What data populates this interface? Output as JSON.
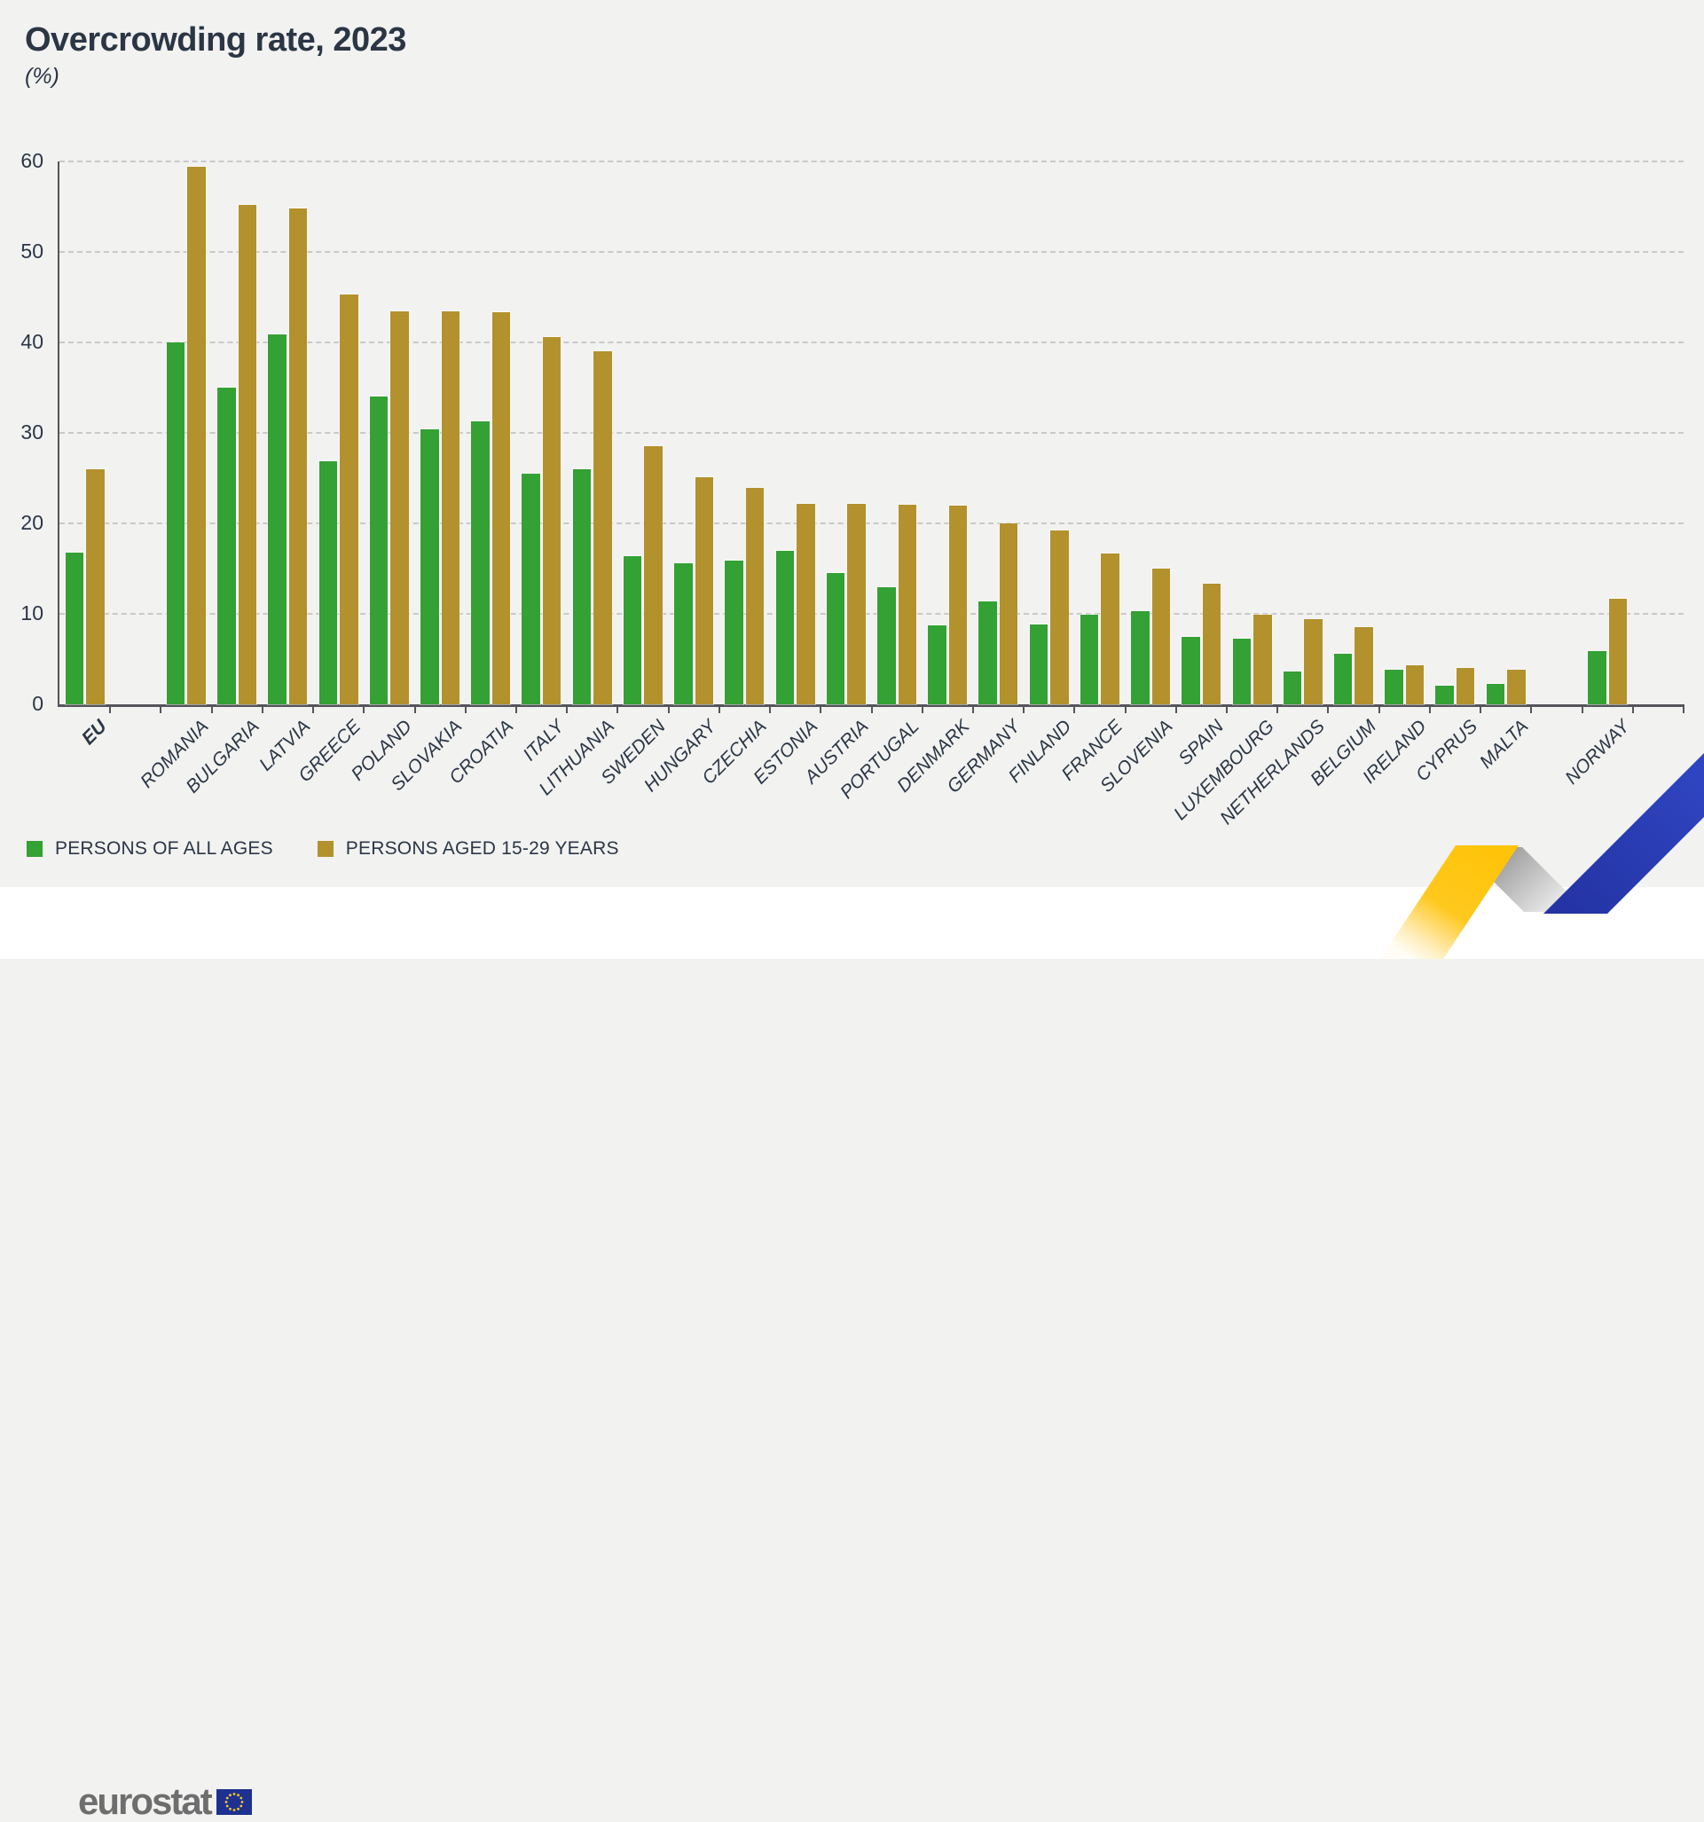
{
  "title": "Overcrowding rate, 2023",
  "subtitle": "(%)",
  "legend": {
    "all_ages_label": "PERSONS OF ALL AGES",
    "aged_15_29_label": "PERSONS AGED 15-29 YEARS"
  },
  "footer": {
    "logo_text": "eurostat"
  },
  "colors": {
    "all_ages": "#33a133",
    "aged_15_29": "#b3912c",
    "text": "#2b3645",
    "axis": "#54555a",
    "gridline": "#c9c9c9",
    "background": "#f2f2f1",
    "footer_background": "#ffffff",
    "ribbon_yellow": "#ffc408",
    "ribbon_blue": "#2b3db2",
    "flag_blue": "#1e3191",
    "flag_stars": "#f7c91e",
    "logo_gray": "#6e6e6e"
  },
  "chart_data": {
    "type": "bar",
    "title": "Overcrowding rate, 2023",
    "ylabel": "(%)",
    "ylim": [
      0,
      60
    ],
    "yticks": [
      0,
      10,
      20,
      30,
      40,
      50,
      60
    ],
    "grid": "horizontal-dashed",
    "legend_position": "bottom-left",
    "categories": [
      "EU",
      "ROMANIA",
      "BULGARIA",
      "LATVIA",
      "GREECE",
      "POLAND",
      "SLOVAKIA",
      "CROATIA",
      "ITALY",
      "LITHUANIA",
      "SWEDEN",
      "HUNGARY",
      "CZECHIA",
      "ESTONIA",
      "AUSTRIA",
      "PORTUGAL",
      "DENMARK",
      "GERMANY",
      "FINLAND",
      "FRANCE",
      "SLOVENIA",
      "SPAIN",
      "LUXEMBOURG",
      "NETHERLANDS",
      "BELGIUM",
      "IRELAND",
      "CYPRUS",
      "MALTA",
      "NORWAY"
    ],
    "separated_categories": [
      "EU",
      "NORWAY"
    ],
    "series": [
      {
        "name": "PERSONS OF ALL AGES",
        "color": "#33a133",
        "values": [
          16.8,
          40.0,
          35.0,
          40.9,
          26.9,
          34.0,
          30.4,
          31.3,
          25.5,
          26.0,
          16.4,
          15.6,
          15.9,
          17.0,
          14.5,
          12.9,
          8.7,
          11.4,
          8.8,
          9.9,
          10.3,
          7.5,
          7.3,
          3.6,
          5.6,
          3.8,
          2.1,
          2.3,
          5.9
        ]
      },
      {
        "name": "PERSONS AGED 15-29 YEARS",
        "color": "#b3912c",
        "values": [
          26.0,
          59.4,
          55.2,
          54.8,
          45.3,
          43.4,
          43.4,
          43.3,
          40.6,
          39.0,
          28.5,
          25.1,
          23.9,
          22.2,
          22.2,
          22.1,
          22.0,
          20.0,
          19.2,
          16.7,
          15.0,
          13.3,
          9.9,
          9.4,
          8.5,
          4.3,
          4.0,
          3.8,
          11.7
        ]
      }
    ]
  }
}
